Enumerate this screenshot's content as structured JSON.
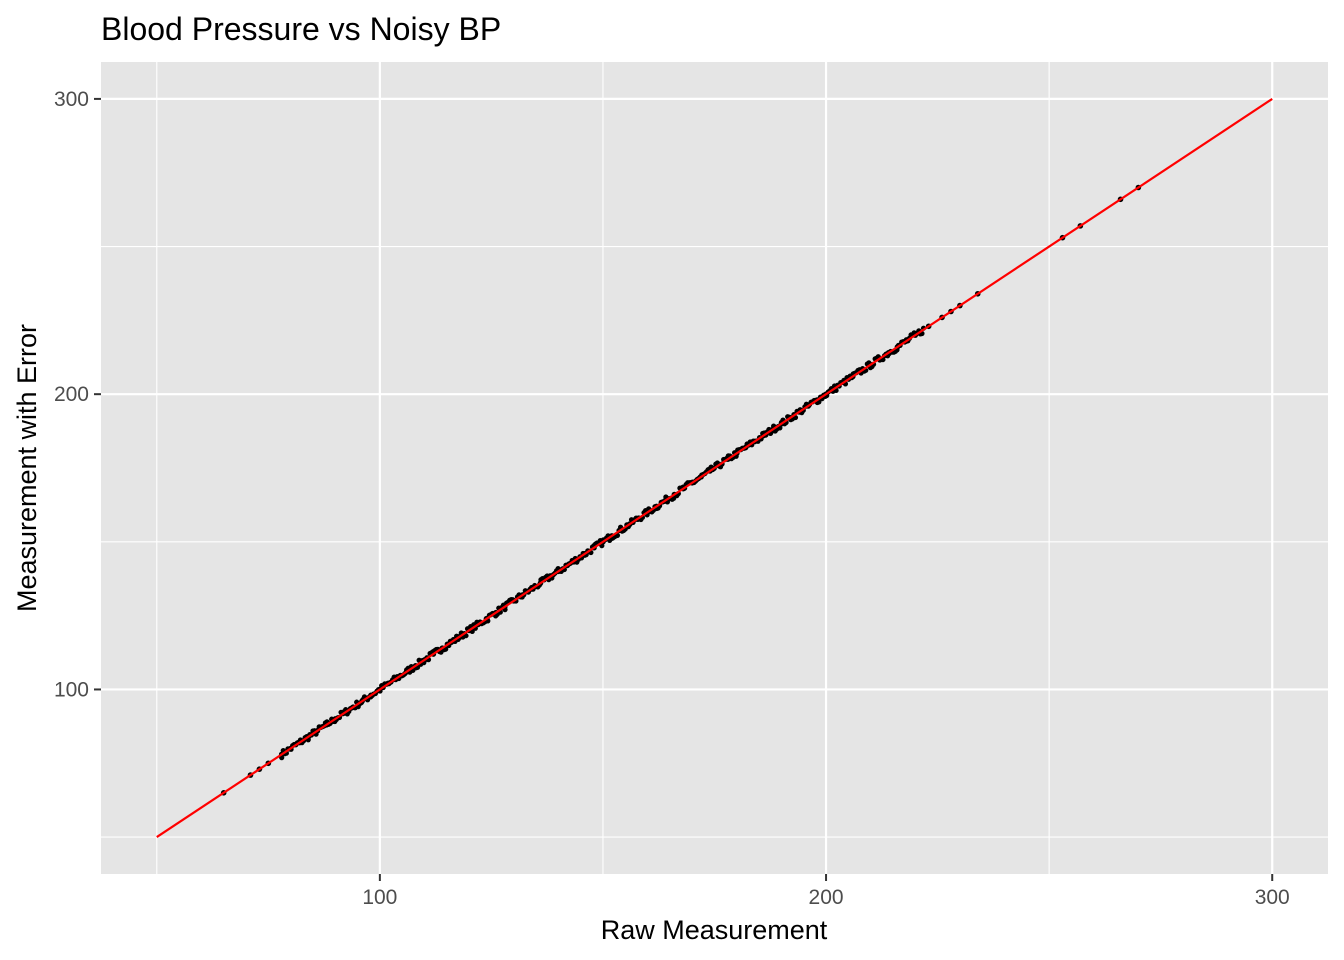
{
  "chart_data": {
    "type": "scatter",
    "title": "Blood Pressure vs Noisy BP",
    "xlabel": "Raw Measurement",
    "ylabel": "Measurement with Error",
    "xlim": [
      37.5,
      312.5
    ],
    "ylim": [
      37.5,
      312.5
    ],
    "x_ticks": [
      100,
      200,
      300
    ],
    "y_ticks": [
      100,
      200,
      300
    ],
    "x_tick_labels": [
      "100",
      "200",
      "300"
    ],
    "y_tick_labels": [
      "100",
      "200",
      "300"
    ],
    "grid": true,
    "panel_background": "#e5e5e5",
    "grid_color": "#ffffff",
    "point_color": "#000000",
    "reference_line": {
      "x": [
        50,
        300
      ],
      "y": [
        50,
        300
      ],
      "color": "#ff0000"
    },
    "points": {
      "x": [
        65,
        71,
        73,
        75,
        78,
        80,
        82,
        84,
        86,
        88,
        90,
        92,
        94,
        96,
        98,
        100,
        102,
        104,
        106,
        108,
        110,
        112,
        114,
        116,
        118,
        120,
        122,
        124,
        126,
        128,
        130,
        132,
        134,
        136,
        138,
        140,
        142,
        144,
        146,
        148,
        150,
        152,
        154,
        156,
        158,
        160,
        162,
        164,
        166,
        168,
        170,
        172,
        174,
        176,
        178,
        180,
        182,
        184,
        186,
        188,
        190,
        192,
        194,
        196,
        198,
        200,
        202,
        204,
        206,
        208,
        210,
        212,
        214,
        216,
        218,
        220,
        223,
        226,
        228,
        230,
        234,
        253,
        257,
        266,
        270
      ],
      "y": [
        65,
        71,
        73,
        75,
        78,
        80,
        82,
        84,
        86,
        88,
        90,
        92,
        94,
        96,
        98,
        100,
        102,
        104,
        106,
        108,
        110,
        112,
        114,
        116,
        118,
        120,
        122,
        124,
        126,
        128,
        130,
        132,
        134,
        136,
        138,
        140,
        142,
        144,
        146,
        148,
        150,
        152,
        154,
        156,
        158,
        160,
        162,
        164,
        166,
        168,
        170,
        172,
        174,
        176,
        178,
        180,
        182,
        184,
        186,
        188,
        190,
        192,
        194,
        196,
        198,
        200,
        202,
        204,
        206,
        208,
        210,
        212,
        214,
        216,
        218,
        220,
        223,
        226,
        228,
        230,
        234,
        253,
        257,
        266,
        270
      ]
    }
  }
}
